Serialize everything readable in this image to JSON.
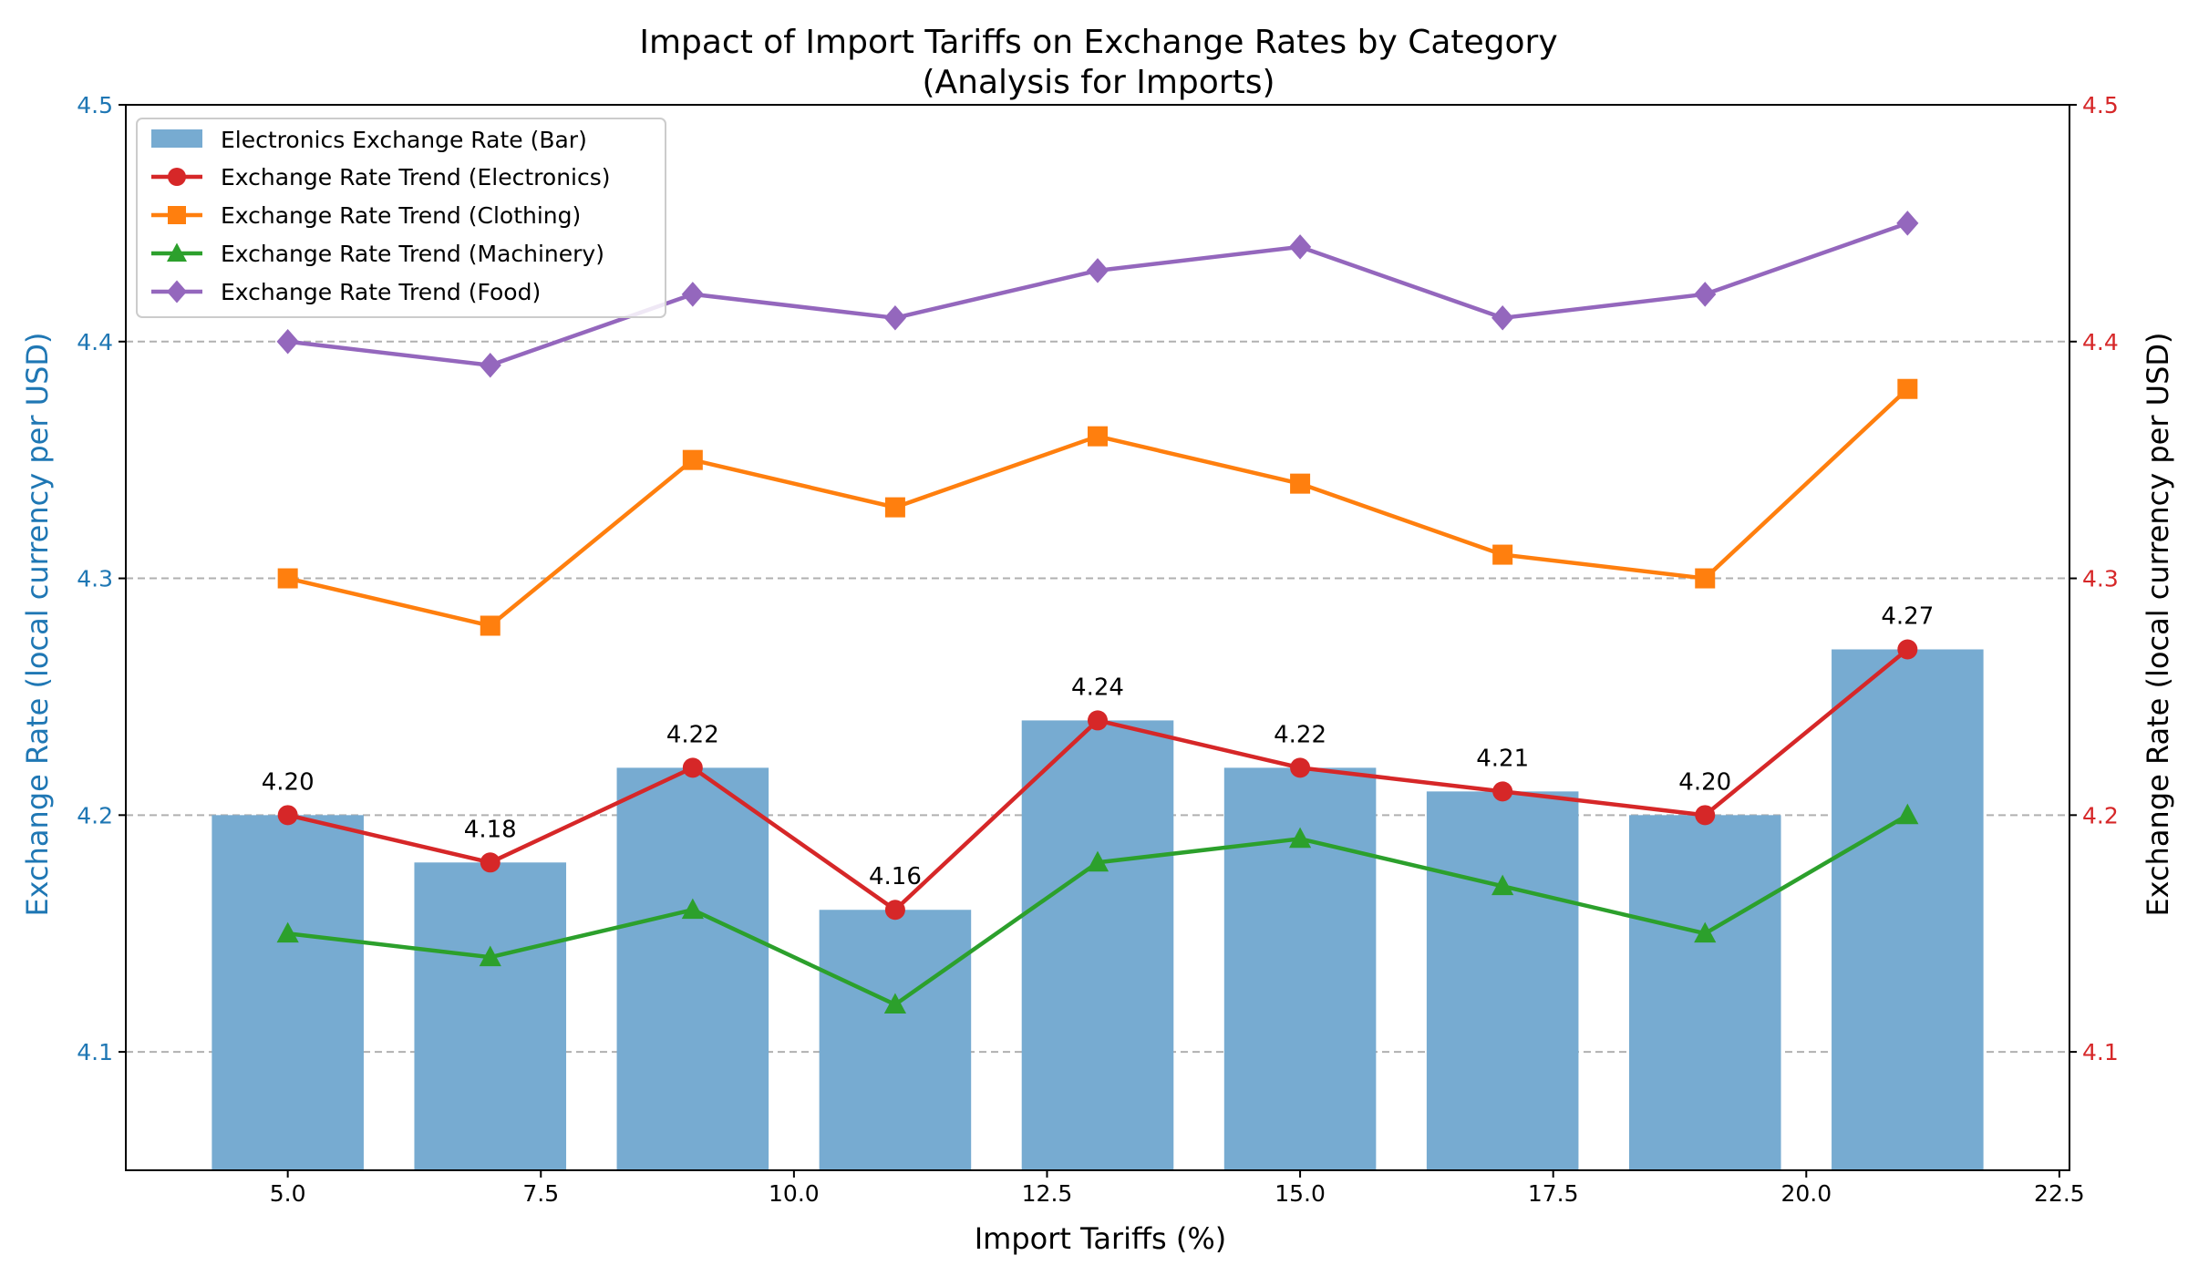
{
  "chart_data": {
    "type": "bar",
    "title": "Impact of Import Tariffs on Exchange Rates by Category",
    "subtitle": "(Analysis for Imports)",
    "xlabel": "Import Tariffs (%)",
    "ylabel_left": "Exchange Rate (local currency per USD)",
    "ylabel_right": "Exchange Rate (local currency per USD)",
    "xlim": [
      3.4,
      22.6
    ],
    "ylim": [
      4.05,
      4.5
    ],
    "bar_width": 1.5,
    "x_ticks": [
      5.0,
      7.5,
      10.0,
      12.5,
      15.0,
      17.5,
      20.0,
      22.5
    ],
    "x_tick_labels": [
      "5.0",
      "7.5",
      "10.0",
      "12.5",
      "15.0",
      "17.5",
      "20.0",
      "22.5"
    ],
    "y_ticks": [
      4.1,
      4.2,
      4.3,
      4.4,
      4.5
    ],
    "y_tick_labels": [
      "4.1",
      "4.2",
      "4.3",
      "4.4",
      "4.5"
    ],
    "grid": "horizontal dashed",
    "legend_position": "upper-left",
    "x": [
      5,
      7,
      9,
      11,
      13,
      15,
      17,
      19,
      21
    ],
    "bar_series": {
      "name": "Electronics Exchange Rate (Bar)",
      "color": "#77abd1",
      "values": [
        4.2,
        4.18,
        4.22,
        4.16,
        4.24,
        4.22,
        4.21,
        4.2,
        4.27
      ],
      "labels": [
        "4.20",
        "4.18",
        "4.22",
        "4.16",
        "4.24",
        "4.22",
        "4.21",
        "4.20",
        "4.27"
      ]
    },
    "series": [
      {
        "name": "Exchange Rate Trend (Electronics)",
        "color": "#d62728",
        "marker": "circle",
        "values": [
          4.2,
          4.18,
          4.22,
          4.16,
          4.24,
          4.22,
          4.21,
          4.2,
          4.27
        ]
      },
      {
        "name": "Exchange Rate Trend (Clothing)",
        "color": "#ff7f0e",
        "marker": "square",
        "values": [
          4.3,
          4.28,
          4.35,
          4.33,
          4.36,
          4.34,
          4.31,
          4.3,
          4.38
        ]
      },
      {
        "name": "Exchange Rate Trend (Machinery)",
        "color": "#2ca02c",
        "marker": "triangle",
        "values": [
          4.15,
          4.14,
          4.16,
          4.12,
          4.18,
          4.19,
          4.17,
          4.15,
          4.2
        ]
      },
      {
        "name": "Exchange Rate Trend (Food)",
        "color": "#9467bd",
        "marker": "diamond",
        "values": [
          4.4,
          4.39,
          4.42,
          4.41,
          4.43,
          4.44,
          4.41,
          4.42,
          4.45
        ]
      }
    ],
    "left_axis_color": "#1f77b4",
    "right_axis_color": "#d62728"
  }
}
